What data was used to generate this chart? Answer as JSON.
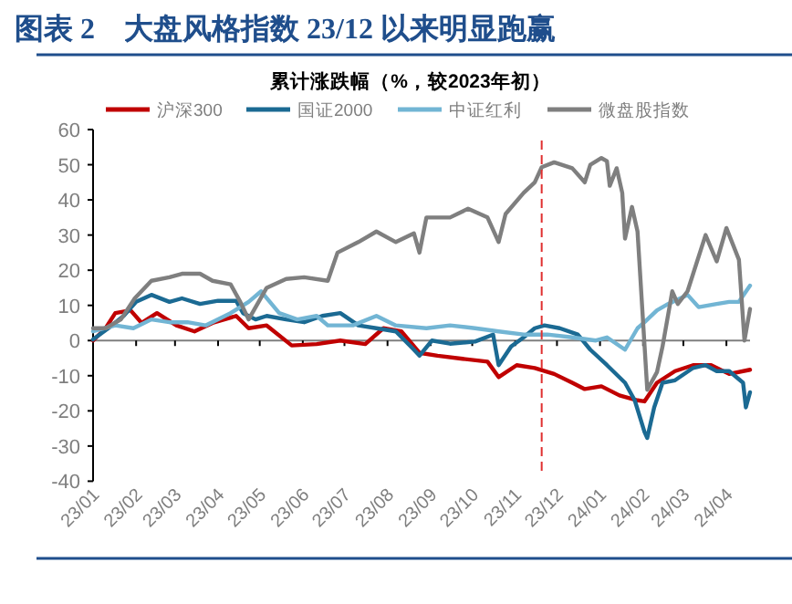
{
  "chart_data": {
    "type": "line",
    "title": "图表 2　大盘风格指数 23/12 以来明显跑赢",
    "subtitle": "累计涨跌幅（%，较2023年初）",
    "legend": "top",
    "xlim": [
      "2023-01-01",
      "2024-04-18"
    ],
    "xticks": [
      {
        "value": "2023-01-01",
        "label": "23/01"
      },
      {
        "value": "2023-02-01",
        "label": "23/02"
      },
      {
        "value": "2023-03-01",
        "label": "23/03"
      },
      {
        "value": "2023-04-01",
        "label": "23/04"
      },
      {
        "value": "2023-05-01",
        "label": "23/05"
      },
      {
        "value": "2023-06-01",
        "label": "23/06"
      },
      {
        "value": "2023-07-01",
        "label": "23/07"
      },
      {
        "value": "2023-08-01",
        "label": "23/08"
      },
      {
        "value": "2023-09-01",
        "label": "23/09"
      },
      {
        "value": "2023-10-01",
        "label": "23/10"
      },
      {
        "value": "2023-11-01",
        "label": "23/11"
      },
      {
        "value": "2023-12-01",
        "label": "23/12"
      },
      {
        "value": "2024-01-01",
        "label": "24/01"
      },
      {
        "value": "2024-02-01",
        "label": "24/02"
      },
      {
        "value": "2024-03-01",
        "label": "24/03"
      },
      {
        "value": "2024-04-01",
        "label": "24/04"
      }
    ],
    "ylim": [
      -40,
      60
    ],
    "yticks": [
      -40,
      -30,
      -20,
      -10,
      0,
      10,
      20,
      30,
      40,
      50,
      60
    ],
    "ref_lines": [
      {
        "axis": "x",
        "value": "2023-11-20",
        "color": "#e03030",
        "line_style": "dashed"
      }
    ],
    "series": [
      {
        "name": "沪深300",
        "color": "#c00000",
        "x": [
          "2023-01-01",
          "2023-01-10",
          "2023-01-17",
          "2023-01-28",
          "2023-02-05",
          "2023-02-16",
          "2023-03-02",
          "2023-03-15",
          "2023-03-28",
          "2023-04-14",
          "2023-04-23",
          "2023-05-06",
          "2023-05-24",
          "2023-06-11",
          "2023-06-28",
          "2023-07-16",
          "2023-07-29",
          "2023-08-11",
          "2023-08-24",
          "2023-09-06",
          "2023-09-24",
          "2023-10-12",
          "2023-10-20",
          "2023-11-02",
          "2023-11-15",
          "2023-11-29",
          "2023-12-12",
          "2023-12-21",
          "2024-01-02",
          "2024-01-15",
          "2024-01-28",
          "2024-02-02",
          "2024-02-11",
          "2024-02-24",
          "2024-03-08",
          "2024-03-21",
          "2024-04-03",
          "2024-04-18"
        ],
        "values": [
          0,
          3.5,
          7.8,
          8.6,
          5,
          7.8,
          4.3,
          2.6,
          5,
          7,
          3.5,
          4.3,
          -1.4,
          -1,
          0,
          -1,
          3.5,
          2.6,
          -3.5,
          -4.3,
          -5.2,
          -6,
          -10.4,
          -7,
          -7.8,
          -9.5,
          -12,
          -13.8,
          -13,
          -15.6,
          -17,
          -17.3,
          -12,
          -8.7,
          -7,
          -7,
          -9.5,
          -8.3
        ]
      },
      {
        "name": "国证2000",
        "color": "#1b6a93",
        "x": [
          "2023-01-01",
          "2023-01-12",
          "2023-01-23",
          "2023-02-01",
          "2023-02-12",
          "2023-02-25",
          "2023-03-06",
          "2023-03-19",
          "2023-04-01",
          "2023-04-14",
          "2023-04-19",
          "2023-04-28",
          "2023-05-06",
          "2023-05-20",
          "2023-06-02",
          "2023-06-15",
          "2023-06-28",
          "2023-07-11",
          "2023-07-24",
          "2023-08-07",
          "2023-08-20",
          "2023-08-24",
          "2023-09-02",
          "2023-09-15",
          "2023-10-03",
          "2023-10-16",
          "2023-10-20",
          "2023-10-29",
          "2023-11-07",
          "2023-11-15",
          "2023-11-22",
          "2023-12-03",
          "2023-12-16",
          "2023-12-25",
          "2024-01-06",
          "2024-01-19",
          "2024-01-26",
          "2024-02-02",
          "2024-02-04",
          "2024-02-09",
          "2024-02-15",
          "2024-02-24",
          "2024-03-08",
          "2024-03-17",
          "2024-03-25",
          "2024-04-03",
          "2024-04-13",
          "2024-04-15",
          "2024-04-18"
        ],
        "values": [
          0.3,
          3.5,
          7,
          11,
          13,
          11,
          12,
          10.4,
          11.3,
          11.3,
          7.8,
          6,
          7,
          6,
          5.2,
          7,
          7.8,
          4.3,
          3.5,
          2.6,
          -2.6,
          -4.3,
          0,
          -0.9,
          -0.3,
          1.7,
          -7,
          -1.7,
          0.9,
          3.5,
          4.3,
          3.5,
          1.7,
          -2.6,
          -7,
          -12,
          -17,
          -26,
          -27.7,
          -19,
          -12,
          -11.3,
          -7.8,
          -7,
          -8.7,
          -8.7,
          -12,
          -19,
          -14.7
        ]
      },
      {
        "name": "中证红利",
        "color": "#72b5d4",
        "x": [
          "2023-01-01",
          "2023-01-17",
          "2023-01-30",
          "2023-02-12",
          "2023-02-25",
          "2023-03-10",
          "2023-03-23",
          "2023-04-10",
          "2023-04-23",
          "2023-05-02",
          "2023-05-15",
          "2023-05-28",
          "2023-06-11",
          "2023-06-19",
          "2023-07-07",
          "2023-07-24",
          "2023-08-07",
          "2023-08-29",
          "2023-09-15",
          "2023-10-03",
          "2023-10-20",
          "2023-11-07",
          "2023-11-24",
          "2023-12-12",
          "2023-12-29",
          "2024-01-06",
          "2024-01-19",
          "2024-01-28",
          "2024-02-02",
          "2024-02-11",
          "2024-02-19",
          "2024-03-04",
          "2024-03-12",
          "2024-03-25",
          "2024-04-03",
          "2024-04-10",
          "2024-04-18"
        ],
        "values": [
          2.6,
          4.3,
          3.5,
          6,
          5.2,
          5.2,
          4.3,
          7.8,
          11,
          14,
          7.8,
          6,
          7,
          4.3,
          4.3,
          7,
          4.3,
          3.5,
          4.3,
          3.5,
          2.6,
          1.7,
          1.7,
          0.9,
          0,
          0.9,
          -2.6,
          3.5,
          5.2,
          8.6,
          10.4,
          13,
          9.5,
          10.4,
          11,
          11,
          15.6
        ]
      },
      {
        "name": "微盘股指数",
        "color": "#7f7f7f",
        "x": [
          "2023-01-01",
          "2023-01-10",
          "2023-01-21",
          "2023-01-31",
          "2023-02-12",
          "2023-02-25",
          "2023-03-06",
          "2023-03-19",
          "2023-03-28",
          "2023-04-10",
          "2023-04-17",
          "2023-04-23",
          "2023-05-06",
          "2023-05-20",
          "2023-06-02",
          "2023-06-19",
          "2023-06-26",
          "2023-07-11",
          "2023-07-24",
          "2023-08-07",
          "2023-08-20",
          "2023-08-24",
          "2023-08-29",
          "2023-09-15",
          "2023-09-28",
          "2023-10-12",
          "2023-10-20",
          "2023-10-25",
          "2023-11-07",
          "2023-11-15",
          "2023-11-20",
          "2023-11-29",
          "2023-12-12",
          "2023-12-21",
          "2023-12-25",
          "2024-01-02",
          "2024-01-06",
          "2024-01-08",
          "2024-01-13",
          "2024-01-17",
          "2024-01-19",
          "2024-01-24",
          "2024-01-28",
          "2024-02-04",
          "2024-02-11",
          "2024-02-15",
          "2024-02-22",
          "2024-02-26",
          "2024-03-04",
          "2024-03-17",
          "2024-03-25",
          "2024-04-01",
          "2024-04-10",
          "2024-04-14",
          "2024-04-18"
        ],
        "values": [
          3.5,
          3.5,
          6,
          12,
          17,
          18,
          19,
          19,
          17,
          16,
          11,
          6,
          15,
          17.5,
          18,
          17,
          25,
          28,
          31,
          28,
          30.5,
          25,
          35,
          35,
          37.5,
          35,
          28,
          36,
          42,
          45,
          49.3,
          50.7,
          49,
          45,
          50,
          51.9,
          51,
          44,
          49,
          42,
          29,
          38,
          31,
          -14,
          -9,
          -1.7,
          14,
          10.4,
          14,
          30,
          22.5,
          32,
          23,
          0,
          9
        ]
      }
    ]
  }
}
